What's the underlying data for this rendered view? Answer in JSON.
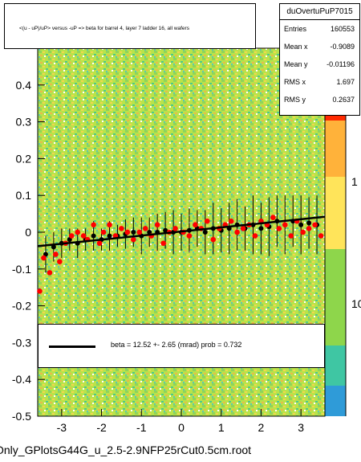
{
  "title": "<(u - uP)/uP> versus -uP => beta for barrel 4, layer 7 ladder 16, all wafers",
  "stats": {
    "name": "duOvertuPuP7015",
    "rows": [
      {
        "label": "Entries",
        "value": "160553"
      },
      {
        "label": "Mean x",
        "value": "-0.9089"
      },
      {
        "label": "Mean y",
        "value": "-0.01196"
      },
      {
        "label": "RMS x",
        "value": "1.697"
      },
      {
        "label": "RMS y",
        "value": "0.2637"
      }
    ]
  },
  "fit_text": "beta =    12.52 +-  2.65 (mrad) prob = 0.732",
  "filename": "Only_GPlotsG44G_u_2.5-2.9NFP25rCut0.5cm.root",
  "colors": {
    "points": "#ff0000",
    "profile": "#000000",
    "fit": "#000000"
  },
  "chart_data": {
    "type": "scatter",
    "title": "<(u - uP)/uP> versus -uP => beta for barrel 4, layer 7 ladder 16, all wafers",
    "xlim": [
      -3.6,
      3.6
    ],
    "ylim": [
      -0.5,
      0.5
    ],
    "x_ticks": [
      "-3",
      "-2",
      "-1",
      "0",
      "1",
      "2",
      "3"
    ],
    "y_ticks": [
      "-0.5",
      "-0.4",
      "-0.3",
      "-0.2",
      "-0.1",
      "0",
      "0.1",
      "0.2",
      "0.3",
      "0.4"
    ],
    "z_ticks": [
      "10",
      "1"
    ],
    "background": "2D histogram, colz palette",
    "fit": {
      "type": "line",
      "x": [
        -3.6,
        3.6
      ],
      "y": [
        -0.038,
        0.042
      ]
    },
    "series": [
      {
        "kind": "profile",
        "x": [
          -3.4,
          -3.2,
          -3.0,
          -2.8,
          -2.6,
          -2.4,
          -2.2,
          -2.0,
          -1.8,
          -1.6,
          -1.4,
          -1.2,
          -1.0,
          -0.8,
          -0.6,
          -0.4,
          -0.2,
          0.0,
          0.2,
          0.4,
          0.6,
          0.8,
          1.0,
          1.2,
          1.4,
          1.6,
          1.8,
          2.0,
          2.2,
          2.4,
          2.6,
          2.8,
          3.0,
          3.2,
          3.4
        ],
        "y": [
          -0.06,
          -0.04,
          -0.03,
          -0.02,
          -0.03,
          -0.02,
          -0.01,
          -0.02,
          -0.01,
          -0.01,
          -0.005,
          0.0,
          -0.01,
          0.0,
          0.0,
          0.005,
          0.0,
          0.0,
          0.005,
          0.01,
          0.0,
          0.01,
          0.005,
          0.01,
          0.02,
          0.01,
          0.02,
          0.01,
          0.015,
          0.03,
          0.02,
          0.03,
          0.02,
          0.025,
          0.02
        ],
        "err": [
          0.05,
          0.04,
          0.04,
          0.03,
          0.04,
          0.03,
          0.04,
          0.03,
          0.04,
          0.03,
          0.04,
          0.04,
          0.05,
          0.04,
          0.05,
          0.05,
          0.06,
          0.05,
          0.06,
          0.05,
          0.06,
          0.07,
          0.06,
          0.07,
          0.07,
          0.06,
          0.08,
          0.07,
          0.08,
          0.07,
          0.08,
          0.07,
          0.08,
          0.07,
          0.08
        ]
      },
      {
        "kind": "points",
        "x": [
          -3.55,
          -3.45,
          -3.3,
          -3.15,
          -3.05,
          -2.9,
          -2.75,
          -2.6,
          -2.45,
          -2.35,
          -2.2,
          -2.05,
          -1.95,
          -1.8,
          -1.65,
          -1.5,
          -1.35,
          -1.2,
          -1.05,
          -0.9,
          -0.75,
          -0.6,
          -0.45,
          -0.3,
          -0.15,
          0.05,
          0.2,
          0.35,
          0.5,
          0.65,
          0.8,
          0.95,
          1.1,
          1.25,
          1.4,
          1.55,
          1.7,
          1.85,
          2.0,
          2.15,
          2.3,
          2.45,
          2.6,
          2.75,
          2.9,
          3.05,
          3.2,
          3.35,
          3.5
        ],
        "y": [
          -0.16,
          -0.07,
          -0.11,
          -0.06,
          -0.08,
          -0.03,
          -0.01,
          0.0,
          -0.01,
          -0.02,
          0.02,
          -0.03,
          0.0,
          0.02,
          -0.01,
          0.01,
          0.0,
          -0.02,
          0.0,
          0.01,
          -0.01,
          0.02,
          -0.03,
          0.0,
          0.01,
          0.0,
          -0.01,
          0.02,
          0.01,
          0.03,
          -0.02,
          0.01,
          0.02,
          0.03,
          0.0,
          0.01,
          0.02,
          -0.01,
          0.03,
          0.02,
          0.04,
          0.01,
          0.02,
          -0.01,
          0.03,
          0.0,
          0.01,
          0.02,
          -0.01
        ]
      }
    ]
  }
}
